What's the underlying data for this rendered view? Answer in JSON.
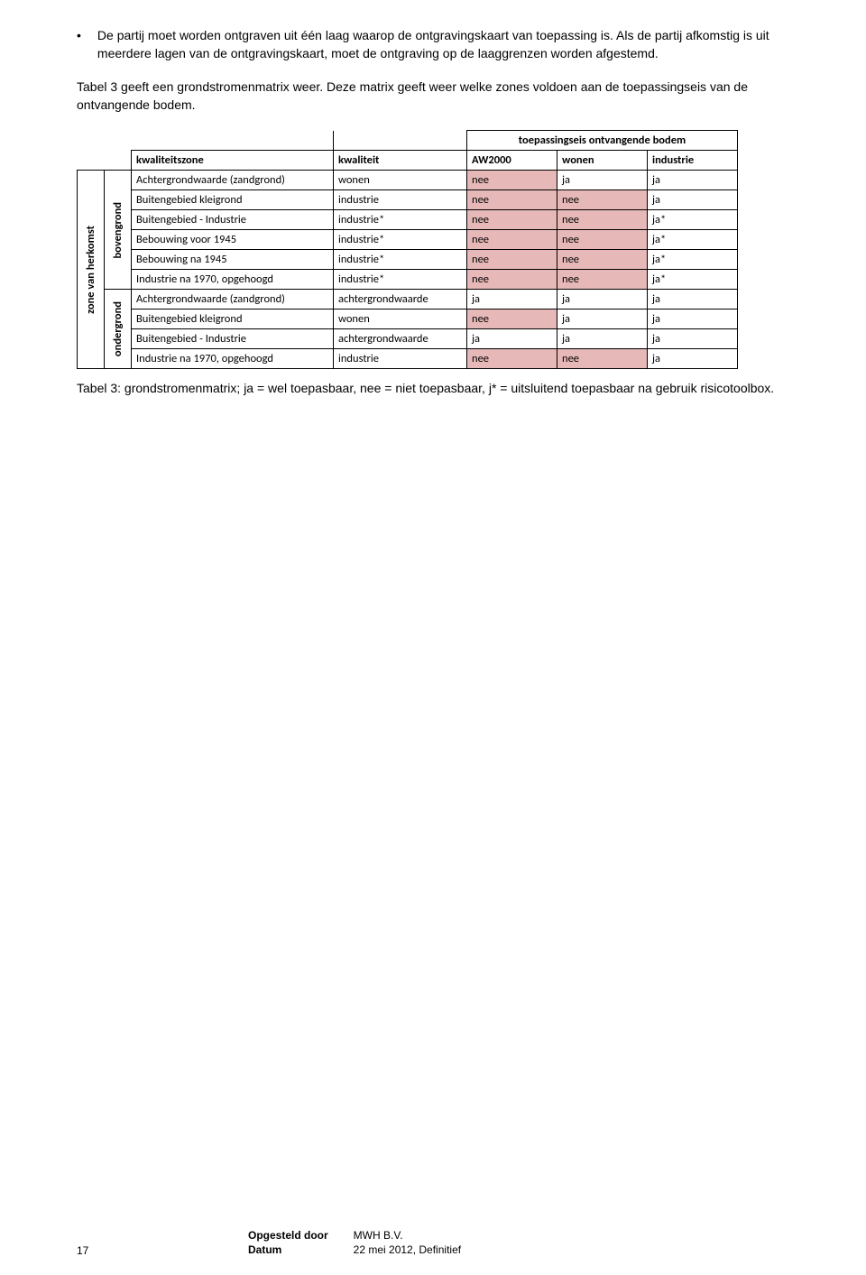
{
  "bullet_text": "De partij moet worden ontgraven uit één laag waarop de ontgravingskaart van toepassing is. Als de partij afkomstig is uit meerdere lagen van de ontgravingskaart, moet de ontgraving op de laaggrenzen worden afgestemd.",
  "para2": "Tabel 3 geeft een grondstromenmatrix weer. Deze matrix geeft weer welke zones voldoen aan de toepassingseis van de ontvangende bodem.",
  "table": {
    "top_header": "toepassingseis ontvangende bodem",
    "row_header_1": "zone van herkomst",
    "row_header_2a": "bovengrond",
    "row_header_2b": "ondergrond",
    "col_headers": [
      "kwaliteitszone",
      "kwaliteit",
      "AW2000",
      "wonen",
      "industrie"
    ],
    "rows": [
      {
        "zone": "Achtergrondwaarde (zandgrond)",
        "kw": "wonen",
        "aw": "nee",
        "wo": "ja",
        "ind": "ja",
        "hl": [
          "aw"
        ]
      },
      {
        "zone": "Buitengebied kleigrond",
        "kw": "industrie",
        "aw": "nee",
        "wo": "nee",
        "ind": "ja",
        "hl": [
          "aw",
          "wo"
        ]
      },
      {
        "zone": "Buitengebied - Industrie",
        "kw": "industrie*",
        "aw": "nee",
        "wo": "nee",
        "ind": "ja*",
        "hl": [
          "aw",
          "wo"
        ]
      },
      {
        "zone": "Bebouwing voor 1945",
        "kw": "industrie*",
        "aw": "nee",
        "wo": "nee",
        "ind": "ja*",
        "hl": [
          "aw",
          "wo"
        ]
      },
      {
        "zone": "Bebouwing na 1945",
        "kw": "industrie*",
        "aw": "nee",
        "wo": "nee",
        "ind": "ja*",
        "hl": [
          "aw",
          "wo"
        ]
      },
      {
        "zone": "Industrie na 1970, opgehoogd",
        "kw": "industrie*",
        "aw": "nee",
        "wo": "nee",
        "ind": "ja*",
        "hl": [
          "aw",
          "wo"
        ]
      },
      {
        "zone": "Achtergrondwaarde (zandgrond)",
        "kw": "achtergrondwaarde",
        "aw": "ja",
        "wo": "ja",
        "ind": "ja",
        "hl": []
      },
      {
        "zone": "Buitengebied kleigrond",
        "kw": "wonen",
        "aw": "nee",
        "wo": "ja",
        "ind": "ja",
        "hl": [
          "aw"
        ]
      },
      {
        "zone": "Buitengebied - Industrie",
        "kw": "achtergrondwaarde",
        "aw": "ja",
        "wo": "ja",
        "ind": "ja",
        "hl": []
      },
      {
        "zone": "Industrie na 1970, opgehoogd",
        "kw": "industrie",
        "aw": "nee",
        "wo": "nee",
        "ind": "ja",
        "hl": [
          "aw",
          "wo"
        ]
      }
    ],
    "col_widths": {
      "rot1": 22,
      "rot2": 22,
      "zone": 224,
      "kw": 148,
      "aw": 100,
      "wo": 100,
      "ind": 100
    }
  },
  "caption": "Tabel 3: grondstromenmatrix; ja = wel toepasbaar, nee = niet toepasbaar, j* = uitsluitend toepasbaar na gebruik risicotoolbox.",
  "footer": {
    "page": "17",
    "label1": "Opgesteld door",
    "value1": "MWH B.V.",
    "label2": "Datum",
    "value2": "22 mei 2012, Definitief"
  }
}
